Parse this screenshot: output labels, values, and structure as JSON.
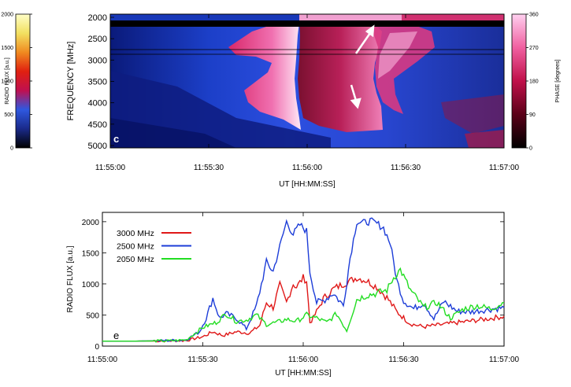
{
  "chart_data": [
    {
      "type": "heatmap",
      "panel_label": "c",
      "xlabel": "UT [HH:MM:SS]",
      "ylabel": "FREQUENCY [MHz]",
      "x_ticks": [
        "11:55:00",
        "11:55:30",
        "11:56:00",
        "11:56:30",
        "11:57:00"
      ],
      "y_ticks": [
        "2000",
        "2500",
        "3000",
        "3500",
        "4000",
        "4500",
        "5000"
      ],
      "xlim": [
        "11:55:00",
        "11:57:00"
      ],
      "ylim": [
        5000,
        2000
      ],
      "left_colorbar": {
        "label": "RADIO FLUX [a.u.]",
        "ticks": [
          "0",
          "500",
          "1000",
          "1500",
          "2000"
        ],
        "range": [
          0,
          2000
        ],
        "colors": [
          "#000000",
          "#1a2a8a",
          "#2f58e0",
          "#c01050",
          "#e02010",
          "#f08a20",
          "#f2e060",
          "#ffffc8"
        ]
      },
      "right_colorbar": {
        "label": "PHASE [degrees]",
        "ticks": [
          "0",
          "90",
          "180",
          "270",
          "360"
        ],
        "range": [
          0,
          360
        ],
        "colors": [
          "#000000",
          "#5a0018",
          "#c0104a",
          "#f060a0",
          "#ffd0f0"
        ]
      }
    },
    {
      "type": "line",
      "panel_label": "e",
      "xlabel": "UT [HH:MM:SS]",
      "ylabel": "RADIO FLUX [a.u.]",
      "x_ticks": [
        "11:55:00",
        "11:55:30",
        "11:56:00",
        "11:56:30",
        "11:57:00"
      ],
      "y_ticks": [
        "0",
        "500",
        "1000",
        "1500",
        "2000"
      ],
      "xlim": [
        "11:55:00",
        "11:57:00"
      ],
      "ylim": [
        0,
        2150
      ],
      "series": [
        {
          "name": "3000 MHz",
          "color": "#e01818",
          "x": [
            "11:55:00",
            "11:55:10",
            "11:55:20",
            "11:55:25",
            "11:55:30",
            "11:55:33",
            "11:55:36",
            "11:55:40",
            "11:55:44",
            "11:55:47",
            "11:55:49",
            "11:55:51",
            "11:55:53",
            "11:55:55",
            "11:55:57",
            "11:55:58",
            "11:56:00",
            "11:56:01",
            "11:56:02",
            "11:56:03",
            "11:56:06",
            "11:56:09",
            "11:56:12",
            "11:56:16",
            "11:56:19",
            "11:56:22",
            "11:56:25",
            "11:56:28",
            "11:56:32",
            "11:56:36",
            "11:56:42",
            "11:56:48",
            "11:56:54",
            "11:57:00"
          ],
          "values": [
            80,
            80,
            85,
            90,
            150,
            230,
            170,
            230,
            210,
            330,
            700,
            620,
            980,
            700,
            1000,
            950,
            1100,
            1050,
            380,
            450,
            760,
            920,
            1000,
            1100,
            1050,
            950,
            780,
            550,
            360,
            310,
            350,
            390,
            430,
            480
          ]
        },
        {
          "name": "2500 MHz",
          "color": "#1d3dd8",
          "x": [
            "11:55:00",
            "11:55:10",
            "11:55:20",
            "11:55:25",
            "11:55:29",
            "11:55:31",
            "11:55:33",
            "11:55:35",
            "11:55:37",
            "11:55:40",
            "11:55:43",
            "11:55:46",
            "11:55:49",
            "11:55:51",
            "11:55:53",
            "11:55:55",
            "11:55:57",
            "11:55:59",
            "11:56:01",
            "11:56:02",
            "11:56:04",
            "11:56:06",
            "11:56:09",
            "11:56:12",
            "11:56:14",
            "11:56:16",
            "11:56:18",
            "11:56:20",
            "11:56:22",
            "11:56:24",
            "11:56:26",
            "11:56:28",
            "11:56:30",
            "11:56:33",
            "11:56:36",
            "11:56:39",
            "11:56:42",
            "11:56:46",
            "11:56:50",
            "11:56:54",
            "11:57:00"
          ],
          "values": [
            80,
            80,
            90,
            100,
            230,
            450,
            770,
            450,
            520,
            450,
            280,
            640,
            1350,
            1200,
            1600,
            2000,
            1800,
            1950,
            1850,
            1200,
            700,
            730,
            850,
            650,
            1420,
            2000,
            1980,
            2010,
            1970,
            1900,
            1650,
            1050,
            730,
            600,
            700,
            440,
            720,
            560,
            550,
            580,
            620
          ]
        },
        {
          "name": "2050 MHz",
          "color": "#22dd22",
          "x": [
            "11:55:00",
            "11:55:10",
            "11:55:20",
            "11:55:25",
            "11:55:30",
            "11:55:34",
            "11:55:37",
            "11:55:40",
            "11:55:43",
            "11:55:46",
            "11:55:49",
            "11:55:52",
            "11:55:55",
            "11:55:58",
            "11:56:01",
            "11:56:04",
            "11:56:07",
            "11:56:10",
            "11:56:13",
            "11:56:16",
            "11:56:19",
            "11:56:22",
            "11:56:25",
            "11:56:27",
            "11:56:29",
            "11:56:32",
            "11:56:36",
            "11:56:40",
            "11:56:44",
            "11:56:48",
            "11:56:52",
            "11:56:56",
            "11:57:00"
          ],
          "values": [
            80,
            80,
            85,
            100,
            300,
            380,
            520,
            400,
            420,
            500,
            350,
            380,
            430,
            400,
            500,
            450,
            380,
            520,
            250,
            750,
            820,
            850,
            900,
            1100,
            1230,
            900,
            620,
            700,
            450,
            600,
            650,
            600,
            700
          ]
        }
      ]
    }
  ]
}
